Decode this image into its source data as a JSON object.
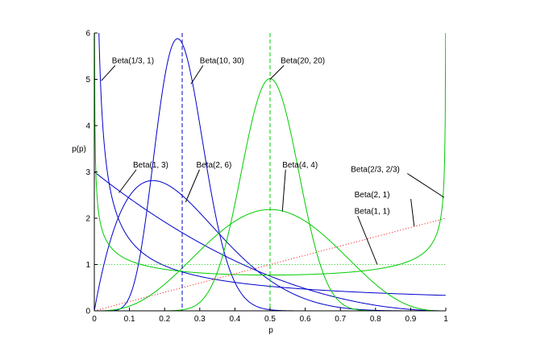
{
  "chart_data": {
    "type": "line",
    "title": "",
    "xlabel": "p",
    "ylabel": "p(p)",
    "xlim": [
      0,
      1
    ],
    "ylim": [
      0,
      6
    ],
    "grid": false,
    "x_ticks": [
      "0",
      "0.1",
      "0.2",
      "0.3",
      "0.4",
      "0.5",
      "0.6",
      "0.7",
      "0.8",
      "0.9",
      "1"
    ],
    "y_ticks": [
      "0",
      "1",
      "2",
      "3",
      "4",
      "5",
      "6"
    ],
    "colors": {
      "blue": "#0000cc",
      "green": "#00cc00",
      "red": "#ff0000",
      "axis": "#000000"
    },
    "series": [
      {
        "name": "Beta(1/3, 1)",
        "a": 0.3333,
        "b": 1,
        "color": "blue",
        "style": "solid"
      },
      {
        "name": "Beta(10, 30)",
        "a": 10,
        "b": 30,
        "color": "blue",
        "style": "solid"
      },
      {
        "name": "Beta(1, 3)",
        "a": 1,
        "b": 3,
        "color": "blue",
        "style": "solid"
      },
      {
        "name": "Beta(2, 6)",
        "a": 2,
        "b": 6,
        "color": "blue",
        "style": "solid"
      },
      {
        "name": "Beta(20, 20)",
        "a": 20,
        "b": 20,
        "color": "green",
        "style": "solid"
      },
      {
        "name": "Beta(4, 4)",
        "a": 4,
        "b": 4,
        "color": "green",
        "style": "solid"
      },
      {
        "name": "Beta(2/3, 2/3)",
        "a": 0.6667,
        "b": 0.6667,
        "color": "green",
        "style": "solid"
      },
      {
        "name": "Beta(2, 1)",
        "a": 2,
        "b": 1,
        "color": "red",
        "style": "dotted"
      },
      {
        "name": "Beta(1, 1)",
        "a": 1,
        "b": 1,
        "color": "green",
        "style": "dotted"
      }
    ],
    "vertical_lines": [
      {
        "x": 0.25,
        "color": "blue",
        "style": "dashed"
      },
      {
        "x": 0.5,
        "color": "green",
        "style": "dashed"
      }
    ],
    "annotations": [
      {
        "text": "Beta(1/3, 1)",
        "point": [
          0.02,
          4.97
        ],
        "label": [
          0.05,
          5.35
        ]
      },
      {
        "text": "Beta(10, 30)",
        "point": [
          0.275,
          4.9
        ],
        "label": [
          0.3,
          5.35
        ]
      },
      {
        "text": "Beta(20, 20)",
        "point": [
          0.5,
          5.0
        ],
        "label": [
          0.53,
          5.35
        ]
      },
      {
        "text": "Beta(1, 3)",
        "point": [
          0.07,
          2.55
        ],
        "label": [
          0.11,
          3.1
        ]
      },
      {
        "text": "Beta(2, 6)",
        "point": [
          0.26,
          2.35
        ],
        "label": [
          0.29,
          3.1
        ]
      },
      {
        "text": "Beta(4, 4)",
        "point": [
          0.535,
          2.15
        ],
        "label": [
          0.535,
          3.1
        ]
      },
      {
        "text": "Beta(2/3, 2/3)",
        "point": [
          0.995,
          2.45
        ],
        "label": [
          0.73,
          3.0
        ]
      },
      {
        "text": "Beta(2, 1)",
        "point": [
          0.91,
          1.83
        ],
        "label": [
          0.74,
          2.45
        ]
      },
      {
        "text": "Beta(1, 1)",
        "point": [
          0.805,
          1.0
        ],
        "label": [
          0.74,
          2.1
        ]
      }
    ]
  }
}
